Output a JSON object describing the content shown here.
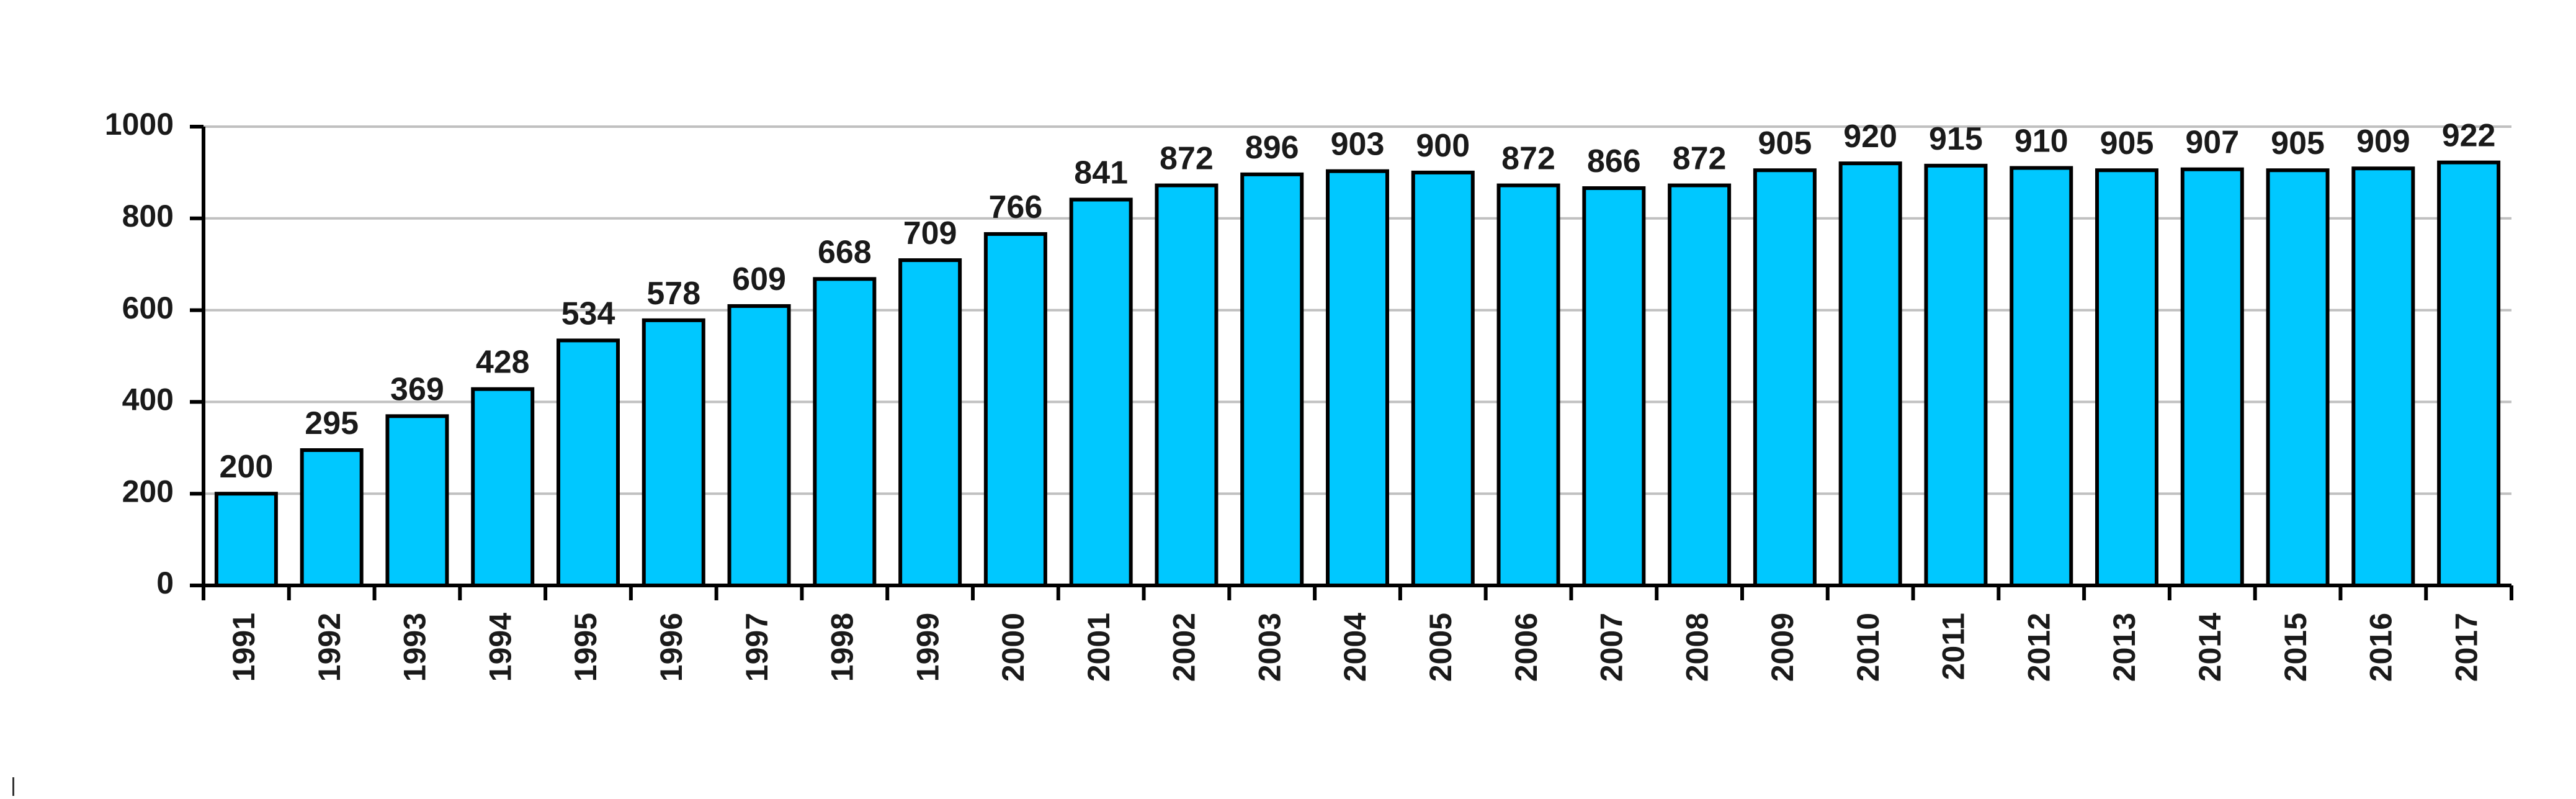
{
  "chart_data": {
    "type": "bar",
    "title": "",
    "xlabel": "",
    "ylabel": "",
    "categories": [
      "1991",
      "1992",
      "1993",
      "1994",
      "1995",
      "1996",
      "1997",
      "1998",
      "1999",
      "2000",
      "2001",
      "2002",
      "2003",
      "2004",
      "2005",
      "2006",
      "2007",
      "2008",
      "2009",
      "2010",
      "2011",
      "2012",
      "2013",
      "2014",
      "2015",
      "2016",
      "2017"
    ],
    "values": [
      200,
      295,
      369,
      428,
      534,
      578,
      609,
      668,
      709,
      766,
      841,
      872,
      896,
      903,
      900,
      872,
      866,
      872,
      905,
      920,
      915,
      910,
      905,
      907,
      905,
      909,
      922
    ],
    "data_labels": [
      "200",
      "295",
      "369",
      "428",
      "534",
      "578",
      "609",
      "668",
      "709",
      "766",
      "841",
      "872",
      "896",
      "903",
      "900",
      "872",
      "866",
      "872",
      "905",
      "920",
      "915",
      "910",
      "905",
      "907",
      "905",
      "909",
      "922"
    ],
    "yticks": [
      "0",
      "200",
      "400",
      "600",
      "800",
      "1000"
    ],
    "ylim": [
      0,
      1000
    ],
    "grid": true,
    "legend": "none",
    "bar_color": "#00C8FF",
    "bar_edge_color": "#000000",
    "grid_color": "#C0C0C0"
  }
}
